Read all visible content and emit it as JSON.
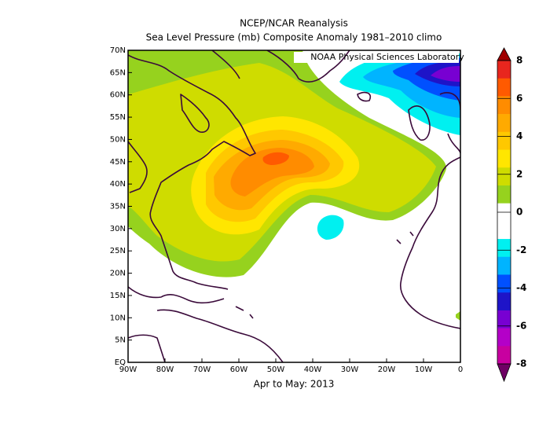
{
  "title": "NCEP/NCAR Reanalysis",
  "subtitle": "Sea Level Pressure (mb) Composite Anomaly 1981–2010 climo",
  "credit": "NOAA Physical Sciences Laboratory",
  "period": "Apr to May: 2013",
  "map": {
    "lon_labels": [
      "90W",
      "80W",
      "70W",
      "60W",
      "50W",
      "40W",
      "30W",
      "20W",
      "10W",
      "0"
    ],
    "lat_labels": [
      "EQ",
      "5N",
      "10N",
      "15N",
      "20N",
      "25N",
      "30N",
      "35N",
      "40N",
      "45N",
      "50N",
      "55N",
      "60N",
      "65N",
      "70N"
    ]
  },
  "colorbar": {
    "ticks": [
      8,
      6,
      4,
      2,
      0,
      -2,
      -4,
      -6,
      -8
    ],
    "colors": [
      "#a00000",
      "#e8261e",
      "#ff5a00",
      "#ff8c00",
      "#ffaa00",
      "#ffc800",
      "#ffe600",
      "#cfdc00",
      "#96d21e",
      "#ffffff",
      "#ffffff",
      "#00f0f0",
      "#00b4ff",
      "#0050ff",
      "#1e14c8",
      "#7800d2",
      "#b400c8",
      "#c800a0",
      "#6e0064"
    ]
  }
}
